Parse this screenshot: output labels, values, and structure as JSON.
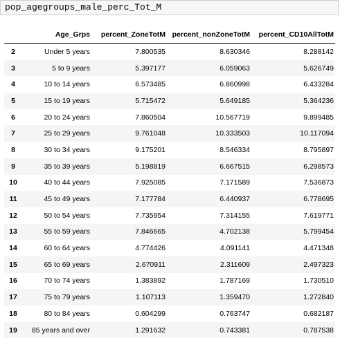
{
  "cell": {
    "code": "pop_agegroups_male_perc_Tot_M"
  },
  "table": {
    "columns": [
      "",
      "Age_Grps",
      "percent_ZoneTotM",
      "percent_nonZoneTotM",
      "percent_CD10AllTotM"
    ],
    "rows": [
      {
        "index": "2",
        "age": "Under 5 years",
        "zone": "7.800535",
        "nonzone": "8.630346",
        "cd10": "8.288142"
      },
      {
        "index": "3",
        "age": "5 to 9 years",
        "zone": "5.397177",
        "nonzone": "6.059063",
        "cd10": "5.626749"
      },
      {
        "index": "4",
        "age": "10 to 14 years",
        "zone": "6.573485",
        "nonzone": "6.860998",
        "cd10": "6.433284"
      },
      {
        "index": "5",
        "age": "15 to 19 years",
        "zone": "5.715472",
        "nonzone": "5.649185",
        "cd10": "5.364236"
      },
      {
        "index": "6",
        "age": "20 to 24 years",
        "zone": "7.860504",
        "nonzone": "10.567719",
        "cd10": "9.899485"
      },
      {
        "index": "7",
        "age": "25 to 29 years",
        "zone": "9.761048",
        "nonzone": "10.333503",
        "cd10": "10.117094"
      },
      {
        "index": "8",
        "age": "30 to 34 years",
        "zone": "9.175201",
        "nonzone": "8.546334",
        "cd10": "8.795897"
      },
      {
        "index": "9",
        "age": "35 to 39 years",
        "zone": "5.198819",
        "nonzone": "6.667515",
        "cd10": "6.298573"
      },
      {
        "index": "10",
        "age": "40 to 44 years",
        "zone": "7.925085",
        "nonzone": "7.171589",
        "cd10": "7.536873"
      },
      {
        "index": "11",
        "age": "45 to 49 years",
        "zone": "7.177784",
        "nonzone": "6.440937",
        "cd10": "6.778695"
      },
      {
        "index": "12",
        "age": "50 to 54 years",
        "zone": "7.735954",
        "nonzone": "7.314155",
        "cd10": "7.619771"
      },
      {
        "index": "13",
        "age": "55 to 59 years",
        "zone": "7.846665",
        "nonzone": "4.702138",
        "cd10": "5.799454"
      },
      {
        "index": "14",
        "age": "60 to 64 years",
        "zone": "4.774426",
        "nonzone": "4.091141",
        "cd10": "4.471348"
      },
      {
        "index": "15",
        "age": "65 to 69 years",
        "zone": "2.670911",
        "nonzone": "2.311609",
        "cd10": "2.497323"
      },
      {
        "index": "16",
        "age": "70 to 74 years",
        "zone": "1.383892",
        "nonzone": "1.787169",
        "cd10": "1.730510"
      },
      {
        "index": "17",
        "age": "75 to 79 years",
        "zone": "1.107113",
        "nonzone": "1.359470",
        "cd10": "1.272840"
      },
      {
        "index": "18",
        "age": "80 to 84 years",
        "zone": "0.604299",
        "nonzone": "0.763747",
        "cd10": "0.682187"
      },
      {
        "index": "19",
        "age": "85 years and over",
        "zone": "1.291632",
        "nonzone": "0.743381",
        "cd10": "0.787538"
      }
    ]
  }
}
